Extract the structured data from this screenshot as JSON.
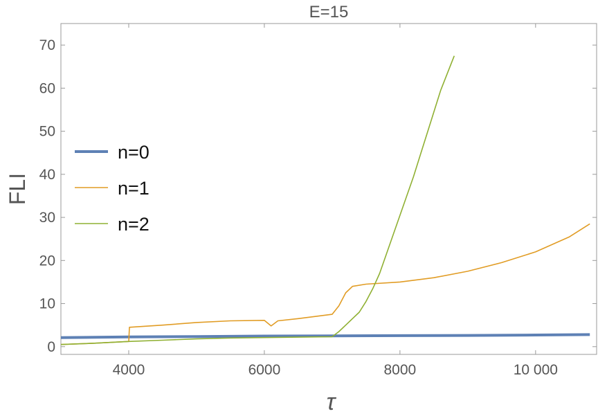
{
  "chart_data": {
    "type": "line",
    "title": "E=15",
    "xlabel": "τ",
    "ylabel": "FLI",
    "xlim": [
      3000,
      10900
    ],
    "ylim": [
      -1.8,
      75
    ],
    "x_ticks": [
      4000,
      6000,
      8000,
      10000
    ],
    "x_tick_labels": [
      "4000",
      "6000",
      "8000",
      "10 000"
    ],
    "y_ticks": [
      0,
      10,
      20,
      30,
      40,
      50,
      60,
      70
    ],
    "y_tick_labels": [
      "0",
      "10",
      "20",
      "30",
      "40",
      "50",
      "60",
      "70"
    ],
    "grid": false,
    "legend_position": "left",
    "series": [
      {
        "name": "n=0",
        "color": "#5E81B5",
        "x": [
          3000,
          4000,
          5000,
          6000,
          7000,
          8000,
          9000,
          10000,
          10800
        ],
        "y": [
          2.1,
          2.25,
          2.35,
          2.45,
          2.5,
          2.55,
          2.6,
          2.7,
          2.8
        ]
      },
      {
        "name": "n=1",
        "color": "#E19C24",
        "x": [
          3000,
          3500,
          4000,
          4010,
          4500,
          5000,
          5500,
          6000,
          6100,
          6200,
          6500,
          7000,
          7100,
          7200,
          7300,
          7500,
          8000,
          8500,
          9000,
          9500,
          10000,
          10500,
          10800
        ],
        "y": [
          0.5,
          0.8,
          1.2,
          4.5,
          5.0,
          5.6,
          6.0,
          6.1,
          4.8,
          6.0,
          6.5,
          7.5,
          9.5,
          12.5,
          14.0,
          14.5,
          15.0,
          16.0,
          17.5,
          19.5,
          22.0,
          25.5,
          28.5
        ]
      },
      {
        "name": "n=2",
        "color": "#8FB032",
        "x": [
          3000,
          3500,
          4000,
          4500,
          5000,
          5500,
          6000,
          6500,
          7000,
          7100,
          7200,
          7300,
          7400,
          7500,
          7600,
          7700,
          7800,
          7900,
          8000,
          8100,
          8200,
          8300,
          8400,
          8500,
          8600,
          8700,
          8800
        ],
        "y": [
          0.5,
          0.8,
          1.2,
          1.5,
          1.8,
          2.0,
          2.1,
          2.2,
          2.3,
          3.5,
          5.0,
          6.5,
          8.0,
          10.5,
          13.5,
          17.0,
          21.5,
          26.0,
          30.5,
          35.0,
          39.5,
          44.5,
          49.5,
          54.5,
          59.5,
          63.5,
          67.5
        ]
      }
    ]
  }
}
